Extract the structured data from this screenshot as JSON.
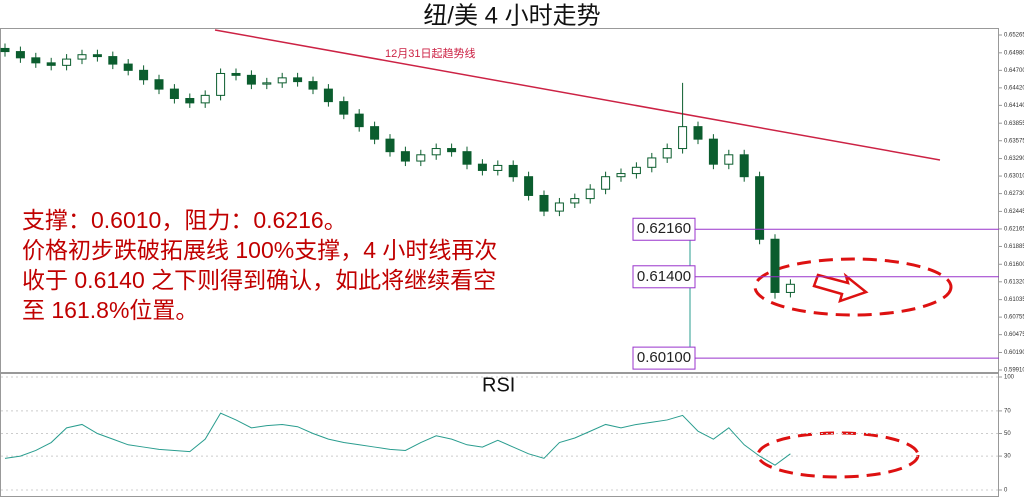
{
  "chart_data": [
    {
      "type": "candlestick",
      "title": "纽/美  4 小时走势",
      "color": "#0b5d2e",
      "trendline_label": "12月31日起趋势线",
      "annotations": [
        "支撑：0.6010，阻力：0.6216。",
        "价格初步跌破拓展线 100%支撑，4 小时线再次",
        "收于 0.6140 之下则得到确认，如此将继续看空",
        "至 161.8%位置。"
      ],
      "levels": [
        {
          "value": 0.6216,
          "label": "0.62160"
        },
        {
          "value": 0.614,
          "label": "0.61400"
        },
        {
          "value": 0.601,
          "label": "0.60100"
        }
      ],
      "level_color": "#9933cc",
      "ylim": [
        0.5991,
        0.65265
      ],
      "yticks": [
        0.65265,
        {
          "value": 0.6498,
          "label": "0.64980"
        },
        {
          "value": 0.647,
          "label": "0.64700"
        },
        {
          "value": 0.6442,
          "label": "0.64420"
        },
        {
          "value": 0.6414,
          "label": "0.64140"
        },
        0.63855,
        0.63575,
        {
          "value": 0.6329,
          "label": "0.63290"
        },
        {
          "value": 0.6301,
          "label": "0.63010"
        },
        {
          "value": 0.6273,
          "label": "0.62730"
        },
        0.62445,
        0.62165,
        0.61885,
        {
          "value": 0.616,
          "label": "0.61600"
        },
        {
          "value": 0.6132,
          "label": "0.61320"
        },
        0.61035,
        0.60755,
        0.60475,
        {
          "value": 0.6019,
          "label": "0.60190"
        },
        {
          "value": 0.5991,
          "label": "0.59910"
        }
      ],
      "candles": [
        [
          0.6505,
          0.6513,
          0.6492,
          0.65
        ],
        [
          0.65,
          0.6508,
          0.6482,
          0.649
        ],
        [
          0.649,
          0.6498,
          0.6474,
          0.6482
        ],
        [
          0.6482,
          0.649,
          0.647,
          0.6478
        ],
        [
          0.6478,
          0.6496,
          0.647,
          0.6488
        ],
        [
          0.6488,
          0.6503,
          0.648,
          0.6495
        ],
        [
          0.6495,
          0.6503,
          0.6484,
          0.6492
        ],
        [
          0.6492,
          0.65,
          0.6472,
          0.648
        ],
        [
          0.648,
          0.6488,
          0.6462,
          0.647
        ],
        [
          0.647,
          0.6478,
          0.6447,
          0.6455
        ],
        [
          0.6455,
          0.6463,
          0.6432,
          0.644
        ],
        [
          0.644,
          0.6448,
          0.6417,
          0.6425
        ],
        [
          0.6425,
          0.6433,
          0.641,
          0.6418
        ],
        [
          0.6418,
          0.6438,
          0.641,
          0.643
        ],
        [
          0.643,
          0.6473,
          0.6422,
          0.6465
        ],
        [
          0.6465,
          0.6473,
          0.6454,
          0.6462
        ],
        [
          0.6462,
          0.647,
          0.644,
          0.6448
        ],
        [
          0.6448,
          0.6458,
          0.644,
          0.645
        ],
        [
          0.645,
          0.6466,
          0.6442,
          0.6458
        ],
        [
          0.6458,
          0.6466,
          0.6444,
          0.6452
        ],
        [
          0.6452,
          0.646,
          0.6432,
          0.644
        ],
        [
          0.644,
          0.6448,
          0.6412,
          0.642
        ],
        [
          0.642,
          0.6428,
          0.6392,
          0.64
        ],
        [
          0.64,
          0.6408,
          0.6372,
          0.638
        ],
        [
          0.638,
          0.6388,
          0.6352,
          0.636
        ],
        [
          0.636,
          0.6368,
          0.6332,
          0.634
        ],
        [
          0.634,
          0.6348,
          0.6317,
          0.6325
        ],
        [
          0.6325,
          0.6343,
          0.6317,
          0.6335
        ],
        [
          0.6335,
          0.6353,
          0.6327,
          0.6345
        ],
        [
          0.6345,
          0.6353,
          0.6332,
          0.634
        ],
        [
          0.634,
          0.6348,
          0.6312,
          0.632
        ],
        [
          0.632,
          0.6328,
          0.6302,
          0.631
        ],
        [
          0.631,
          0.6326,
          0.6302,
          0.6318
        ],
        [
          0.6318,
          0.6326,
          0.6292,
          0.63
        ],
        [
          0.63,
          0.6308,
          0.6262,
          0.627
        ],
        [
          0.627,
          0.6278,
          0.6237,
          0.6245
        ],
        [
          0.6245,
          0.6266,
          0.6237,
          0.6258
        ],
        [
          0.6258,
          0.6273,
          0.625,
          0.6265
        ],
        [
          0.6265,
          0.6288,
          0.6257,
          0.628
        ],
        [
          0.628,
          0.6308,
          0.6272,
          0.63
        ],
        [
          0.63,
          0.6313,
          0.6292,
          0.6305
        ],
        [
          0.6305,
          0.6323,
          0.6297,
          0.6315
        ],
        [
          0.6315,
          0.6338,
          0.6307,
          0.633
        ],
        [
          0.633,
          0.6353,
          0.6322,
          0.6345
        ],
        [
          0.6345,
          0.645,
          0.6337,
          0.638
        ],
        [
          0.638,
          0.6388,
          0.6352,
          0.636
        ],
        [
          0.636,
          0.6368,
          0.6312,
          0.632
        ],
        [
          0.632,
          0.6343,
          0.6312,
          0.6335
        ],
        [
          0.6335,
          0.6343,
          0.6292,
          0.63
        ],
        [
          0.63,
          0.6308,
          0.6192,
          0.62
        ],
        [
          0.62,
          0.6208,
          0.6105,
          0.6115
        ],
        [
          0.6115,
          0.6136,
          0.6107,
          0.6128
        ]
      ]
    },
    {
      "type": "line",
      "title": "RSI",
      "color": "#2a9d8f",
      "ylim": [
        0,
        100
      ],
      "yticks": [
        100,
        70,
        50,
        30,
        0
      ],
      "values": [
        28,
        30,
        35,
        42,
        55,
        58,
        50,
        45,
        40,
        38,
        36,
        35,
        34,
        45,
        68,
        62,
        55,
        57,
        58,
        56,
        50,
        45,
        42,
        40,
        38,
        36,
        35,
        42,
        48,
        45,
        40,
        38,
        44,
        38,
        32,
        28,
        42,
        46,
        52,
        58,
        55,
        58,
        60,
        62,
        66,
        52,
        45,
        55,
        40,
        30,
        22,
        32
      ]
    }
  ]
}
